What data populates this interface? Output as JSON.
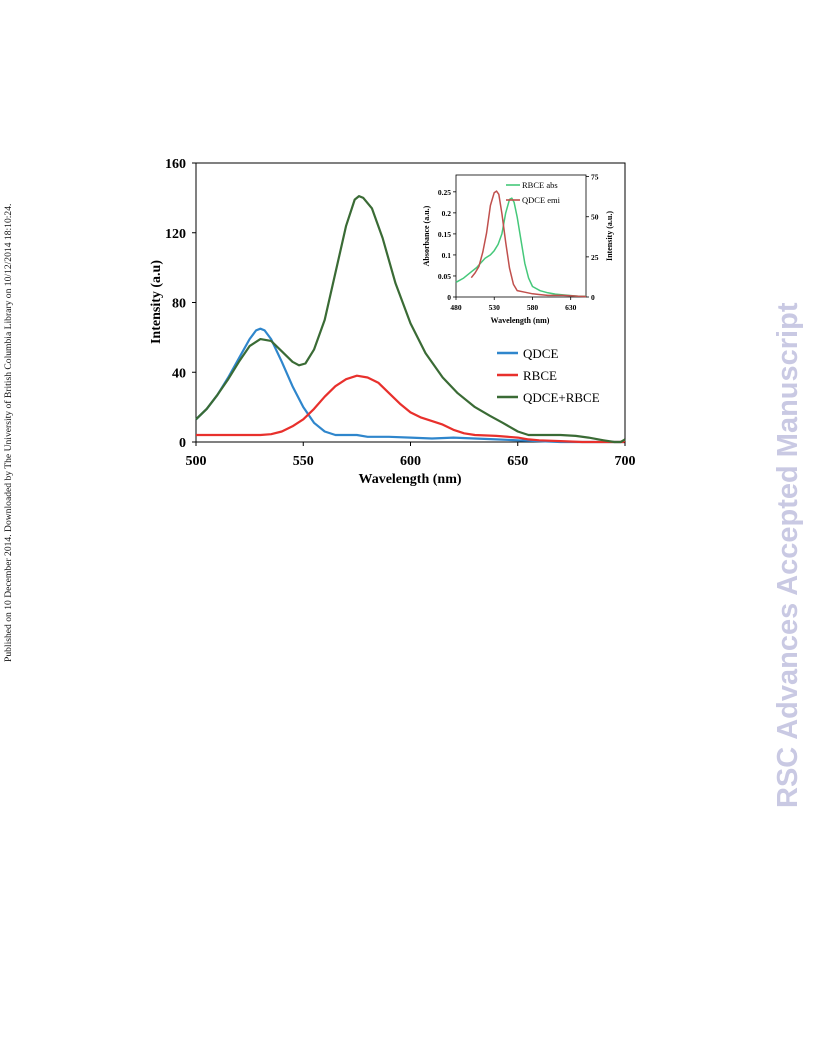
{
  "side_note": "Published on 10 December 2014. Downloaded by The University of British Columbia Library on 10/12/2014 18:10:24.",
  "watermark": "RSC Advances Accepted Manuscript",
  "chart_data": [
    {
      "type": "line",
      "xlabel": "Wavelength (nm)",
      "ylabel": "Intensity (a.u)",
      "xlim": [
        500,
        700
      ],
      "ylim": [
        0,
        160
      ],
      "xticks": [
        500,
        550,
        600,
        650,
        700
      ],
      "yticks": [
        0,
        40,
        80,
        120,
        160
      ],
      "grid": false,
      "legend": "center-right",
      "series": [
        {
          "name": "QDCE",
          "color": "#2f86cc",
          "points": [
            [
              500,
              13
            ],
            [
              505,
              19
            ],
            [
              510,
              27
            ],
            [
              515,
              37
            ],
            [
              520,
              48
            ],
            [
              525,
              59
            ],
            [
              528,
              64
            ],
            [
              530,
              65
            ],
            [
              532,
              64
            ],
            [
              535,
              59
            ],
            [
              540,
              46
            ],
            [
              545,
              32
            ],
            [
              550,
              20
            ],
            [
              555,
              11
            ],
            [
              560,
              6
            ],
            [
              565,
              4
            ],
            [
              570,
              4
            ],
            [
              575,
              4
            ],
            [
              580,
              3
            ],
            [
              590,
              3
            ],
            [
              600,
              2.5
            ],
            [
              610,
              2
            ],
            [
              620,
              2.5
            ],
            [
              630,
              2
            ],
            [
              640,
              1.5
            ],
            [
              650,
              1
            ],
            [
              660,
              0.5
            ],
            [
              670,
              0
            ],
            [
              700,
              0
            ]
          ]
        },
        {
          "name": "RBCE",
          "color": "#e8302c",
          "points": [
            [
              500,
              4
            ],
            [
              510,
              4
            ],
            [
              520,
              4
            ],
            [
              530,
              4
            ],
            [
              535,
              4.5
            ],
            [
              540,
              6
            ],
            [
              545,
              9
            ],
            [
              550,
              13
            ],
            [
              555,
              19
            ],
            [
              560,
              26
            ],
            [
              565,
              32
            ],
            [
              570,
              36
            ],
            [
              575,
              38
            ],
            [
              580,
              37
            ],
            [
              585,
              34
            ],
            [
              590,
              28
            ],
            [
              595,
              22
            ],
            [
              600,
              17
            ],
            [
              605,
              14
            ],
            [
              610,
              12
            ],
            [
              615,
              10
            ],
            [
              620,
              7
            ],
            [
              625,
              5
            ],
            [
              630,
              4
            ],
            [
              640,
              3.5
            ],
            [
              650,
              2.5
            ],
            [
              655,
              1.5
            ],
            [
              660,
              1
            ],
            [
              670,
              0.5
            ],
            [
              680,
              0
            ],
            [
              700,
              0
            ]
          ]
        },
        {
          "name": "QDCE+RBCE",
          "color": "#3a6b35",
          "points": [
            [
              500,
              13
            ],
            [
              505,
              19
            ],
            [
              510,
              27
            ],
            [
              515,
              36
            ],
            [
              520,
              46
            ],
            [
              525,
              55
            ],
            [
              530,
              59
            ],
            [
              535,
              58
            ],
            [
              540,
              52
            ],
            [
              545,
              46
            ],
            [
              548,
              44
            ],
            [
              551,
              45
            ],
            [
              555,
              53
            ],
            [
              560,
              70
            ],
            [
              565,
              97
            ],
            [
              570,
              124
            ],
            [
              574,
              139
            ],
            [
              576,
              141
            ],
            [
              578,
              140
            ],
            [
              582,
              134
            ],
            [
              587,
              117
            ],
            [
              593,
              91
            ],
            [
              600,
              68
            ],
            [
              607,
              51
            ],
            [
              615,
              37
            ],
            [
              622,
              28
            ],
            [
              630,
              20
            ],
            [
              637,
              15
            ],
            [
              643,
              11
            ],
            [
              650,
              6
            ],
            [
              655,
              4
            ],
            [
              660,
              4
            ],
            [
              670,
              4
            ],
            [
              677,
              3.5
            ],
            [
              683,
              2.5
            ],
            [
              690,
              1
            ],
            [
              695,
              0
            ],
            [
              698,
              0
            ],
            [
              700,
              1.5
            ]
          ]
        }
      ]
    },
    {
      "type": "line",
      "xlabel": "Wavelength (nm)",
      "ylabel": "Absorbance (a.u.)",
      "y2label": "Intensity (a.u.)",
      "xlim": [
        480,
        650
      ],
      "ylim": [
        0,
        0.29
      ],
      "y2lim": [
        0,
        76
      ],
      "xticks": [
        480,
        530,
        580,
        630
      ],
      "yticks": [
        0,
        0.05,
        0.1,
        0.15,
        0.2,
        0.25
      ],
      "y2ticks": [
        0,
        25,
        50,
        75
      ],
      "legend": "top-right",
      "series": [
        {
          "name": "RBCE abs",
          "axis": "left",
          "color": "#45c87a",
          "points": [
            [
              480,
              0.035
            ],
            [
              490,
              0.045
            ],
            [
              500,
              0.06
            ],
            [
              507,
              0.07
            ],
            [
              512,
              0.08
            ],
            [
              518,
              0.092
            ],
            [
              525,
              0.1
            ],
            [
              530,
              0.11
            ],
            [
              535,
              0.125
            ],
            [
              540,
              0.15
            ],
            [
              545,
              0.2
            ],
            [
              550,
              0.232
            ],
            [
              553,
              0.235
            ],
            [
              556,
              0.225
            ],
            [
              560,
              0.19
            ],
            [
              565,
              0.135
            ],
            [
              570,
              0.08
            ],
            [
              575,
              0.045
            ],
            [
              580,
              0.025
            ],
            [
              590,
              0.015
            ],
            [
              600,
              0.01
            ],
            [
              610,
              0.007
            ],
            [
              620,
              0.005
            ],
            [
              640,
              0.002
            ],
            [
              650,
              0.002
            ]
          ]
        },
        {
          "name": "QDCE emi",
          "axis": "right",
          "color": "#c0504d",
          "points": [
            [
              500,
              12
            ],
            [
              505,
              15
            ],
            [
              510,
              19
            ],
            [
              515,
              28
            ],
            [
              520,
              40
            ],
            [
              525,
              57
            ],
            [
              530,
              65
            ],
            [
              533,
              66
            ],
            [
              536,
              64
            ],
            [
              540,
              52
            ],
            [
              545,
              34
            ],
            [
              550,
              18
            ],
            [
              555,
              8
            ],
            [
              560,
              4
            ],
            [
              570,
              3
            ],
            [
              580,
              2
            ],
            [
              590,
              1.5
            ],
            [
              600,
              1
            ],
            [
              610,
              1
            ],
            [
              620,
              1
            ],
            [
              630,
              0.8
            ],
            [
              640,
              0.5
            ],
            [
              650,
              0.3
            ]
          ]
        }
      ]
    }
  ]
}
